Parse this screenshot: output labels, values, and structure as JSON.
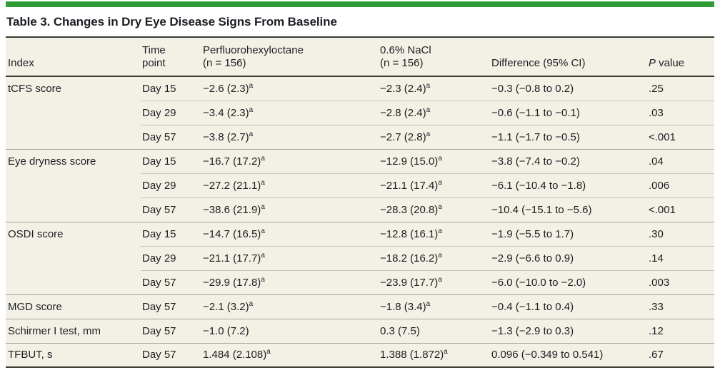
{
  "accent_color": "#2e9d38",
  "title": "Table 3. Changes in Dry Eye Disease Signs From Baseline",
  "columns": {
    "index": "Index",
    "time_point": {
      "line1": "Time",
      "line2": "point"
    },
    "pfho": {
      "line1": "Perfluorohexyloctane",
      "line2": "(n = 156)"
    },
    "nacl": {
      "line1": "0.6% NaCl",
      "line2": "(n = 156)"
    },
    "difference": "Difference (95% CI)",
    "p_value": {
      "italic": "P",
      "rest": " value"
    }
  },
  "rows": [
    {
      "index": "tCFS score",
      "time": "Day 15",
      "pfho": {
        "v": "−2.6 (2.3)",
        "sup": "a"
      },
      "nacl": {
        "v": "−2.3 (2.4)",
        "sup": "a"
      },
      "diff": "−0.3 (−0.8 to 0.2)",
      "p": ".25",
      "group": true
    },
    {
      "index": "",
      "time": "Day 29",
      "pfho": {
        "v": "−3.4 (2.3)",
        "sup": "a"
      },
      "nacl": {
        "v": "−2.8 (2.4)",
        "sup": "a"
      },
      "diff": "−0.6 (−1.1 to −0.1)",
      "p": ".03",
      "group": false
    },
    {
      "index": "",
      "time": "Day 57",
      "pfho": {
        "v": "−3.8 (2.7)",
        "sup": "a"
      },
      "nacl": {
        "v": "−2.7 (2.8)",
        "sup": "a"
      },
      "diff": "−1.1 (−1.7 to −0.5)",
      "p": "<.001",
      "group": false
    },
    {
      "index": "Eye dryness score",
      "time": "Day 15",
      "pfho": {
        "v": "−16.7 (17.2)",
        "sup": "a"
      },
      "nacl": {
        "v": "−12.9 (15.0)",
        "sup": "a"
      },
      "diff": "−3.8 (−7.4 to −0.2)",
      "p": ".04",
      "group": true
    },
    {
      "index": "",
      "time": "Day 29",
      "pfho": {
        "v": "−27.2 (21.1)",
        "sup": "a"
      },
      "nacl": {
        "v": "−21.1 (17.4)",
        "sup": "a"
      },
      "diff": "−6.1 (−10.4 to −1.8)",
      "p": ".006",
      "group": false
    },
    {
      "index": "",
      "time": "Day 57",
      "pfho": {
        "v": "−38.6 (21.9)",
        "sup": "a"
      },
      "nacl": {
        "v": "−28.3 (20.8)",
        "sup": "a"
      },
      "diff": "−10.4 (−15.1 to −5.6)",
      "p": "<.001",
      "group": false
    },
    {
      "index": "OSDI score",
      "time": "Day 15",
      "pfho": {
        "v": "−14.7 (16.5)",
        "sup": "a"
      },
      "nacl": {
        "v": "−12.8 (16.1)",
        "sup": "a"
      },
      "diff": "−1.9 (−5.5 to 1.7)",
      "p": ".30",
      "group": true
    },
    {
      "index": "",
      "time": "Day 29",
      "pfho": {
        "v": "−21.1 (17.7)",
        "sup": "a"
      },
      "nacl": {
        "v": "−18.2 (16.2)",
        "sup": "a"
      },
      "diff": "−2.9 (−6.6 to 0.9)",
      "p": ".14",
      "group": false
    },
    {
      "index": "",
      "time": "Day 57",
      "pfho": {
        "v": "−29.9 (17.8)",
        "sup": "a"
      },
      "nacl": {
        "v": "−23.9 (17.7)",
        "sup": "a"
      },
      "diff": "−6.0 (−10.0 to −2.0)",
      "p": ".003",
      "group": false
    },
    {
      "index": "MGD score",
      "time": "Day 57",
      "pfho": {
        "v": "−2.1 (3.2)",
        "sup": "a"
      },
      "nacl": {
        "v": "−1.8 (3.4)",
        "sup": "a"
      },
      "diff": "−0.4 (−1.1 to 0.4)",
      "p": ".33",
      "group": true
    },
    {
      "index": "Schirmer I test, mm",
      "time": "Day 57",
      "pfho": {
        "v": "−1.0 (7.2)",
        "sup": ""
      },
      "nacl": {
        "v": "0.3 (7.5)",
        "sup": ""
      },
      "diff": "−1.3 (−2.9 to 0.3)",
      "p": ".12",
      "group": true
    },
    {
      "index": "TFBUT, s",
      "time": "Day 57",
      "pfho": {
        "v": "1.484 (2.108)",
        "sup": "a"
      },
      "nacl": {
        "v": "1.388 (1.872)",
        "sup": "a"
      },
      "diff": "0.096 (−0.349 to 0.541)",
      "p": ".67",
      "group": true
    }
  ]
}
